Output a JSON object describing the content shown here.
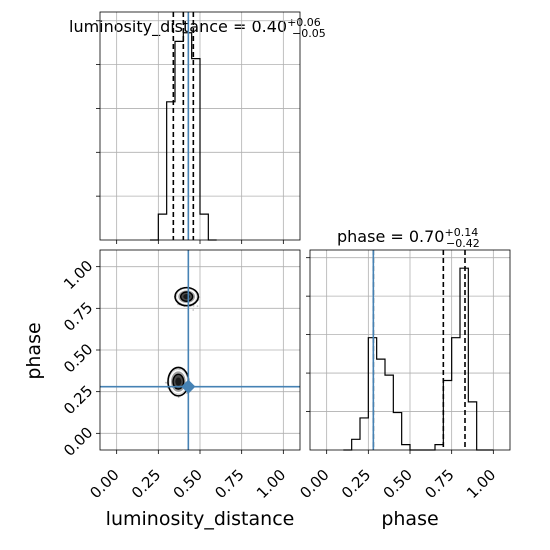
{
  "chart_data": {
    "type": "corner",
    "truths": {
      "luminosity_distance": 0.43,
      "phase": 0.28
    },
    "panels": [
      {
        "id": "lumdist_hist",
        "type": "histogram",
        "title_main": "luminosity_distance = 0.40",
        "title_sup": "+0.06",
        "title_sub": "−0.05",
        "xlim": [
          -0.1,
          1.1
        ],
        "grid": true,
        "bin_edges": [
          0.2,
          0.25,
          0.3,
          0.35,
          0.4,
          0.45,
          0.5,
          0.55,
          0.6
        ],
        "counts": [
          0,
          3,
          16,
          23,
          24,
          21,
          3,
          0
        ],
        "quantile_lines": [
          0.34,
          0.4,
          0.46
        ],
        "truth": 0.43
      },
      {
        "id": "joint_2d",
        "type": "contour",
        "xlabel": "luminosity_distance",
        "ylabel": "phase",
        "xlim": [
          -0.1,
          1.1
        ],
        "ylim": [
          -0.1,
          1.1
        ],
        "xticks": [
          "0.00",
          "0.25",
          "0.50",
          "0.75",
          "1.00"
        ],
        "yticks": [
          "0.00",
          "0.25",
          "0.50",
          "0.75",
          "1.00"
        ],
        "grid": true,
        "modes": [
          {
            "x": 0.42,
            "y": 0.82,
            "sx": 0.045,
            "sy": 0.035
          },
          {
            "x": 0.37,
            "y": 0.31,
            "sx": 0.04,
            "sy": 0.055
          }
        ],
        "truth": [
          0.43,
          0.28
        ]
      },
      {
        "id": "phase_hist",
        "type": "histogram",
        "title_main": "phase = 0.70",
        "title_sup": "+0.14",
        "title_sub": "−0.42",
        "xlabel": "phase",
        "xlim": [
          -0.1,
          1.1
        ],
        "xticks": [
          "0.00",
          "0.25",
          "0.50",
          "0.75",
          "1.00"
        ],
        "grid": true,
        "bin_edges": [
          0.1,
          0.15,
          0.2,
          0.25,
          0.3,
          0.35,
          0.4,
          0.45,
          0.5,
          0.55,
          0.6,
          0.65,
          0.7,
          0.75,
          0.8,
          0.85,
          0.9,
          0.95,
          1.0
        ],
        "counts": [
          0,
          2,
          6,
          21,
          17,
          14,
          7,
          1,
          0,
          0,
          0,
          1,
          13,
          21,
          34,
          9,
          0,
          0
        ],
        "quantile_lines": [
          0.28,
          0.7,
          0.83
        ],
        "truth": 0.28
      }
    ]
  }
}
